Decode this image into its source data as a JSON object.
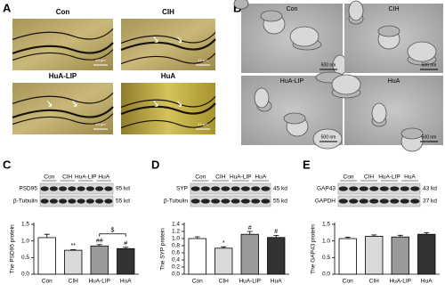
{
  "panels": [
    "A",
    "B",
    "C",
    "D",
    "E"
  ],
  "golgi": {
    "labels": [
      "Con",
      "CIH",
      "HuA-LIP",
      "HuA"
    ],
    "scale": [
      "10 μm",
      "10 μm",
      "10 μm",
      "10 μm"
    ]
  },
  "em": {
    "labels": [
      "Con",
      "CIH",
      "HuA-LIP",
      "HuA"
    ],
    "scale": [
      "500 nm",
      "500 nm",
      "500 nm",
      "500 nm"
    ]
  },
  "blots": [
    {
      "lanes": [
        "Con",
        "CIH",
        "HuA-LIP",
        "HuA"
      ],
      "rows": [
        {
          "protein": "PSD95",
          "size": "95 kd"
        },
        {
          "protein": "β-Tubulin",
          "size": "55 kd"
        }
      ]
    },
    {
      "lanes": [
        "Con",
        "CIH",
        "HuA-LIP",
        "HuA"
      ],
      "rows": [
        {
          "protein": "SYP",
          "size": "45 kd"
        },
        {
          "protein": "β-Tubulin",
          "size": "55 kd"
        }
      ]
    },
    {
      "lanes": [
        "Con",
        "CIH",
        "HuA-LIP",
        "HuA"
      ],
      "rows": [
        {
          "protein": "GAP43",
          "size": "43 kd"
        },
        {
          "protein": "GAPDH",
          "size": "37 kd"
        }
      ]
    }
  ],
  "chart_data": [
    {
      "type": "bar",
      "y_label": "The PSD95 protein",
      "categories": [
        "Con",
        "CIH",
        "HuA-LIP",
        "HuA"
      ],
      "values": [
        1.1,
        0.72,
        0.85,
        0.77
      ],
      "errors": [
        0.1,
        0.02,
        0.04,
        0.04
      ],
      "colors": [
        "#ffffff",
        "#d9d9d9",
        "#9a9a9a",
        "#333333"
      ],
      "ylim": [
        0,
        1.5
      ],
      "yticks": [
        {
          "value": 0,
          "label": "0.0"
        },
        0.5,
        {
          "value": 1,
          "label": "1.0"
        },
        1.5
      ],
      "annotations": [
        {
          "text": "**",
          "category": "CIH"
        },
        {
          "text": "##",
          "category": "HuA-LIP"
        },
        {
          "text": "#",
          "category": "HuA"
        }
      ],
      "brackets": [
        {
          "text": "$",
          "from": "HuA-LIP",
          "to": "HuA"
        }
      ]
    },
    {
      "type": "bar",
      "y_label": "The SYP protein",
      "categories": [
        "Con",
        "CIH",
        "HuA-LIP",
        "HuA"
      ],
      "values": [
        1.0,
        0.73,
        1.12,
        1.03
      ],
      "errors": [
        0.05,
        0.04,
        0.08,
        0.06
      ],
      "colors": [
        "#ffffff",
        "#d9d9d9",
        "#9a9a9a",
        "#333333"
      ],
      "ylim": [
        0,
        1.4
      ],
      "yticks": [
        {
          "value": 0,
          "label": "0.0"
        },
        0.2,
        0.4,
        0.6,
        0.8,
        {
          "value": 1,
          "label": "1.0"
        },
        1.2,
        1.4
      ],
      "annotations": [
        {
          "text": "*",
          "category": "CIH"
        },
        {
          "text": "#",
          "category": "HuA-LIP"
        },
        {
          "text": "#",
          "category": "HuA"
        }
      ]
    },
    {
      "type": "bar",
      "y_label": "The GAP43 protein",
      "categories": [
        "Con",
        "CIH",
        "HuA-LIP",
        "HuA"
      ],
      "values": [
        1.07,
        1.14,
        1.12,
        1.2
      ],
      "errors": [
        0.04,
        0.04,
        0.05,
        0.05
      ],
      "colors": [
        "#ffffff",
        "#d9d9d9",
        "#9a9a9a",
        "#333333"
      ],
      "ylim": [
        0,
        1.5
      ],
      "yticks": [
        {
          "value": 0,
          "label": "0.0"
        },
        0.5,
        {
          "value": 1,
          "label": "1.0"
        },
        1.5
      ]
    }
  ]
}
